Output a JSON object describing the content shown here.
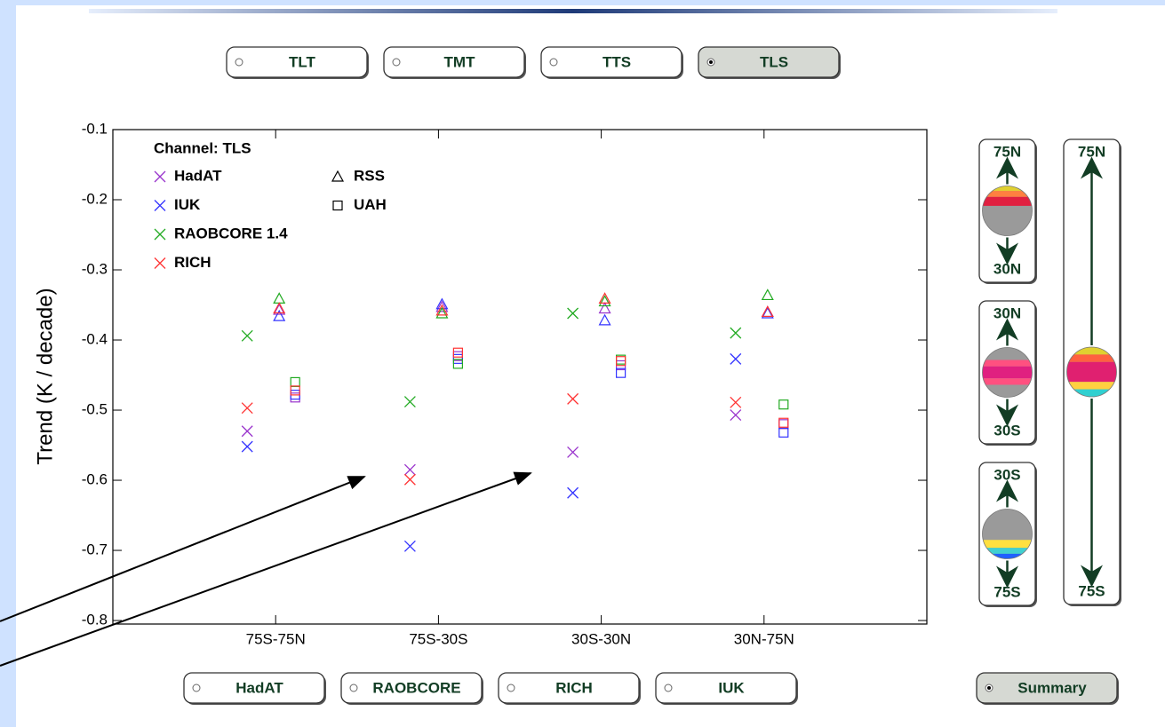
{
  "channel_buttons": [
    {
      "label": "TLT",
      "selected": false
    },
    {
      "label": "TMT",
      "selected": false
    },
    {
      "label": "TTS",
      "selected": false
    },
    {
      "label": "TLS",
      "selected": true
    }
  ],
  "dataset_buttons": [
    {
      "label": "HadAT",
      "selected": false
    },
    {
      "label": "RAOBCORE",
      "selected": false
    },
    {
      "label": "RICH",
      "selected": false
    },
    {
      "label": "IUK",
      "selected": false
    }
  ],
  "summary_button": {
    "label": "Summary",
    "selected": true
  },
  "region_panels": [
    {
      "top": "75N",
      "bottom": "30N"
    },
    {
      "top": "30N",
      "bottom": "30S"
    },
    {
      "top": "30S",
      "bottom": "75S"
    }
  ],
  "global_panel": {
    "top": "75N",
    "bottom": "75S"
  },
  "chart_data": {
    "type": "scatter",
    "legend_title": "Channel: TLS",
    "y_label": "Trend (K / decade)",
    "categories": [
      "75S-75N",
      "75S-30S",
      "30S-30N",
      "30N-75N"
    ],
    "ylim": [
      -0.805,
      -0.1
    ],
    "yticks": [
      -0.1,
      -0.2,
      -0.3,
      -0.4,
      -0.5,
      -0.6,
      -0.7,
      -0.8
    ],
    "series": [
      {
        "name": "HadAT",
        "color": "#9933cc",
        "values": [
          -0.53,
          -0.585,
          -0.56,
          -0.507
        ],
        "rss_values": [
          -0.357,
          -0.353,
          -0.355,
          -0.36
        ],
        "uah_values": [
          -0.482,
          -0.423,
          -0.436,
          -0.52
        ]
      },
      {
        "name": "IUK",
        "color": "#3333ff",
        "values": [
          -0.552,
          -0.694,
          -0.618,
          -0.427
        ],
        "rss_values": [
          -0.366,
          -0.349,
          -0.372,
          -0.362
        ],
        "uah_values": [
          -0.478,
          -0.427,
          -0.447,
          -0.532
        ]
      },
      {
        "name": "RAOBCORE 1.4",
        "color": "#22aa22",
        "values": [
          -0.394,
          -0.488,
          -0.362,
          -0.39
        ],
        "rss_values": [
          -0.341,
          -0.362,
          -0.345,
          -0.336
        ],
        "uah_values": [
          -0.46,
          -0.434,
          -0.428,
          -0.492
        ]
      },
      {
        "name": "RICH",
        "color": "#ff3333",
        "values": [
          -0.497,
          -0.599,
          -0.484,
          -0.489
        ],
        "rss_values": [
          -0.355,
          -0.358,
          -0.341,
          -0.36
        ],
        "uah_values": [
          -0.472,
          -0.418,
          -0.43,
          -0.518
        ]
      }
    ],
    "series_marker": "x",
    "shape_legend": [
      {
        "name": "RSS",
        "marker": "triangle"
      },
      {
        "name": "UAH",
        "marker": "square"
      }
    ]
  }
}
